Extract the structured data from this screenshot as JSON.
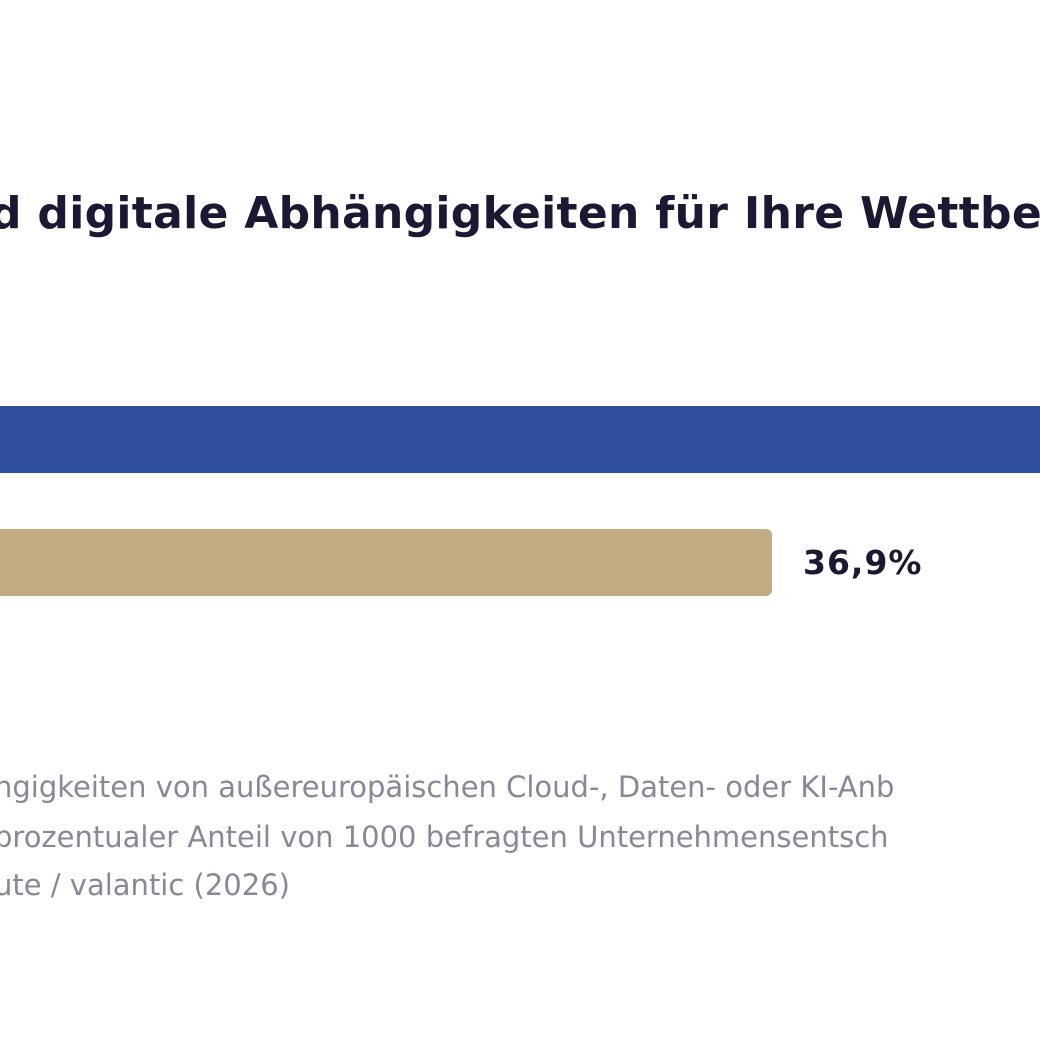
{
  "chart_data": {
    "type": "bar",
    "orientation": "horizontal",
    "title": "d digitale Abhängigkeiten für Ihre Wettbew",
    "series": [
      {
        "values": [
          null
        ],
        "color": "#2f4e9c",
        "value_label": ""
      },
      {
        "values": [
          36.9
        ],
        "color": "#c0ac80",
        "value_label": "36,9%"
      }
    ],
    "unit": "%",
    "grid": false
  },
  "notes": [
    "ngigkeiten von außereuropäischen Cloud-, Daten- oder KI-Anb",
    " prozentualer Anteil von 1000 befragten Unternehmensentsch",
    "ute / valantic (2026)"
  ]
}
